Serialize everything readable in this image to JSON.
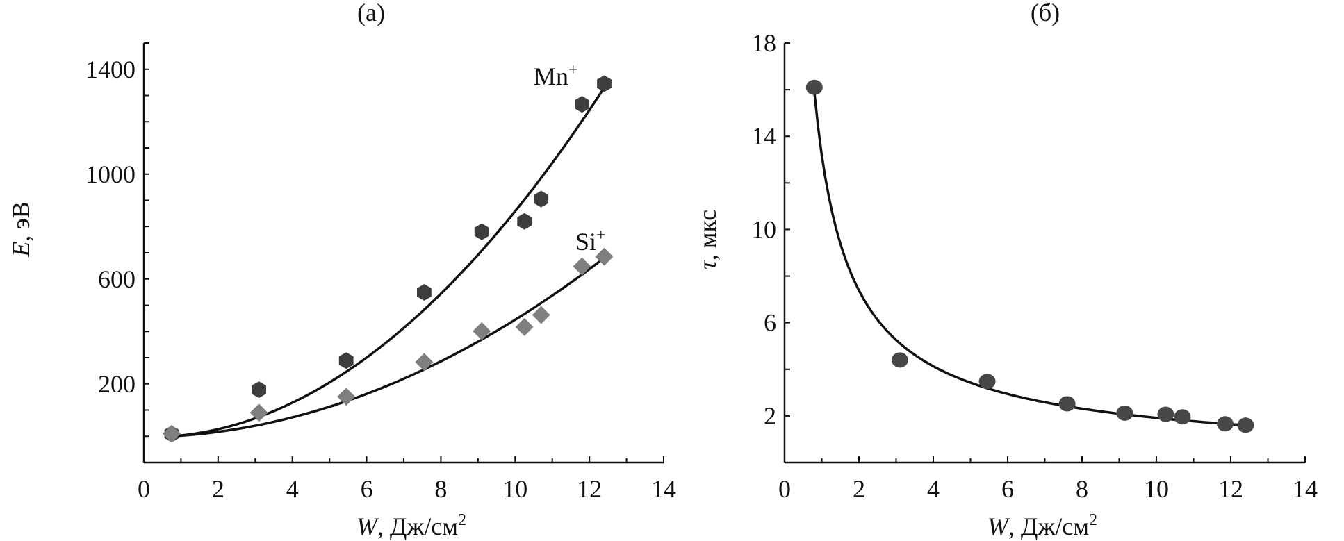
{
  "chart_data": [
    {
      "type": "scatter",
      "title": "(а)",
      "xlabel": "W, Дж/см2",
      "xlabel_parts": {
        "var": "W",
        "unit": ", Дж/см",
        "sup": "2"
      },
      "ylabel": "E, эВ",
      "ylabel_parts": {
        "var": "E",
        "unit": ", эВ"
      },
      "xlim": [
        0,
        14
      ],
      "ylim": [
        -100,
        1500
      ],
      "xticks": [
        0,
        2,
        4,
        6,
        8,
        10,
        12,
        14
      ],
      "yticks": [
        200,
        600,
        1000,
        1400
      ],
      "grid": false,
      "series": [
        {
          "name": "Mn+",
          "label_parts": {
            "base": "Mn",
            "sup": "+"
          },
          "marker": "hexagon",
          "color": "#3d3d3d",
          "x": [
            0.75,
            3.1,
            5.45,
            7.55,
            9.1,
            10.25,
            10.7,
            11.8,
            12.4
          ],
          "y": [
            9,
            178,
            289,
            549,
            780,
            820,
            905,
            1266,
            1345
          ],
          "fit": {
            "form": "a*(W-0.75)^2 + b*(W-0.75)",
            "a": 8.9,
            "b": 10.5,
            "range": [
              0.75,
              12.4
            ]
          }
        },
        {
          "name": "Si+",
          "label_parts": {
            "base": "Si",
            "sup": "+"
          },
          "marker": "diamond",
          "color": "#7f7f7f",
          "x": [
            0.75,
            3.1,
            5.45,
            7.55,
            9.1,
            10.25,
            10.7,
            11.8,
            12.4
          ],
          "y": [
            10,
            90,
            151,
            283,
            401,
            417,
            463,
            648,
            685
          ],
          "fit": {
            "form": "a*(W-0.75)^2 + b*(W-0.75)",
            "a": 4.31,
            "b": 8.2,
            "range": [
              0.75,
              12.4
            ]
          }
        }
      ]
    },
    {
      "type": "scatter",
      "title": "(б)",
      "xlabel": "W, Дж/см2",
      "xlabel_parts": {
        "var": "W",
        "unit": ", Дж/см",
        "sup": "2"
      },
      "ylabel": "τ, мкс",
      "ylabel_parts": {
        "var": "τ",
        "unit": ", мкс"
      },
      "xlim": [
        0,
        14
      ],
      "ylim": [
        0,
        18
      ],
      "xticks": [
        0,
        2,
        4,
        6,
        8,
        10,
        12,
        14
      ],
      "yticks": [
        2,
        6,
        10,
        14,
        18
      ],
      "grid": false,
      "series": [
        {
          "name": "τ",
          "marker": "circle",
          "color": "#474747",
          "x": [
            0.8,
            3.1,
            5.45,
            7.6,
            9.15,
            10.25,
            10.7,
            11.85,
            12.4
          ],
          "y": [
            16.1,
            4.4,
            3.48,
            2.52,
            2.12,
            2.07,
            1.96,
            1.66,
            1.6
          ],
          "fit": {
            "form": "a / W^b",
            "a": 13.2,
            "b": 0.838,
            "range": [
              0.8,
              12.4
            ]
          }
        }
      ]
    }
  ]
}
